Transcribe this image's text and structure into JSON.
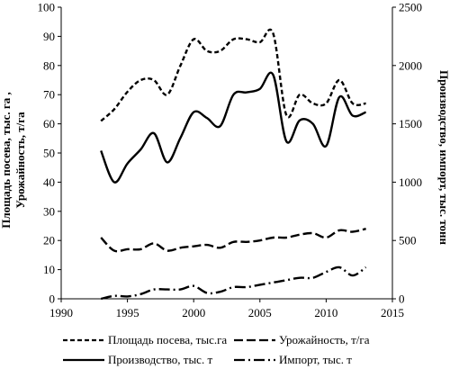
{
  "chart_data": {
    "type": "line",
    "xlabel": "",
    "ylabel_left": "Площадь посева, тыс. га , Урожайность, т/га",
    "ylabel_left_line1": "Площадь посева, тыс. га ,",
    "ylabel_left_line2": "Урожайность, т/га",
    "ylabel_right": "Производство, импорт, тыс. тонн",
    "xlim": [
      1990,
      2015
    ],
    "ylim_left": [
      0,
      100
    ],
    "ylim_right": [
      0,
      2500
    ],
    "x_ticks": [
      1990,
      1995,
      2000,
      2005,
      2010,
      2015
    ],
    "y_left_ticks": [
      0,
      10,
      20,
      30,
      40,
      50,
      60,
      70,
      80,
      90,
      100
    ],
    "y_right_ticks": [
      0,
      500,
      1000,
      1500,
      2000,
      2500
    ],
    "grid": false,
    "legend_position": "bottom",
    "series": [
      {
        "name": "Площадь посева, тыс.га",
        "axis": "left",
        "style": "short-dash",
        "x": [
          1993,
          1994,
          1995,
          1996,
          1997,
          1998,
          1999,
          2000,
          2001,
          2002,
          2003,
          2004,
          2005,
          2006,
          2007,
          2008,
          2009,
          2010,
          2011,
          2012,
          2013
        ],
        "y": [
          61,
          65,
          71,
          75,
          75,
          70,
          80,
          89,
          85,
          85,
          89,
          89,
          88,
          91,
          63,
          70,
          67,
          67,
          75,
          67,
          67
        ]
      },
      {
        "name": "Урожайность, т/га",
        "axis": "left",
        "style": "long-dash",
        "x": [
          1993,
          1994,
          1995,
          1996,
          1997,
          1998,
          1999,
          2000,
          2001,
          2002,
          2003,
          2004,
          2005,
          2006,
          2007,
          2008,
          2009,
          2010,
          2011,
          2012,
          2013
        ],
        "y": [
          21,
          16.5,
          17,
          17,
          19,
          16.5,
          17.5,
          18,
          18.5,
          17.5,
          19.5,
          19.5,
          20,
          21,
          21,
          22,
          22.5,
          21,
          23.5,
          23,
          24
        ]
      },
      {
        "name": "Производство, тыс. т",
        "axis": "right",
        "style": "solid",
        "x": [
          1993,
          1994,
          1995,
          1996,
          1997,
          1998,
          1999,
          2000,
          2001,
          2002,
          2003,
          2004,
          2005,
          2006,
          2007,
          2008,
          2009,
          2010,
          2011,
          2012,
          2013
        ],
        "y": [
          1270,
          1000,
          1160,
          1280,
          1420,
          1170,
          1380,
          1600,
          1550,
          1480,
          1750,
          1770,
          1800,
          1920,
          1350,
          1530,
          1500,
          1310,
          1730,
          1570,
          1600
        ]
      },
      {
        "name": "Импорт, тыс. т",
        "axis": "right",
        "style": "dash-dot",
        "x": [
          1993,
          1994,
          1995,
          1996,
          1997,
          1998,
          1999,
          2000,
          2001,
          2002,
          2003,
          2004,
          2005,
          2006,
          2007,
          2008,
          2009,
          2010,
          2011,
          2012,
          2013
        ],
        "y": [
          0,
          25,
          20,
          40,
          80,
          80,
          80,
          110,
          50,
          60,
          100,
          100,
          120,
          140,
          160,
          180,
          180,
          230,
          270,
          200,
          270
        ]
      }
    ],
    "legend_labels": [
      "Площадь посева, тыс.га",
      "Урожайность, т/га",
      "Производство, тыс. т",
      "Импорт, тыс. т"
    ]
  }
}
